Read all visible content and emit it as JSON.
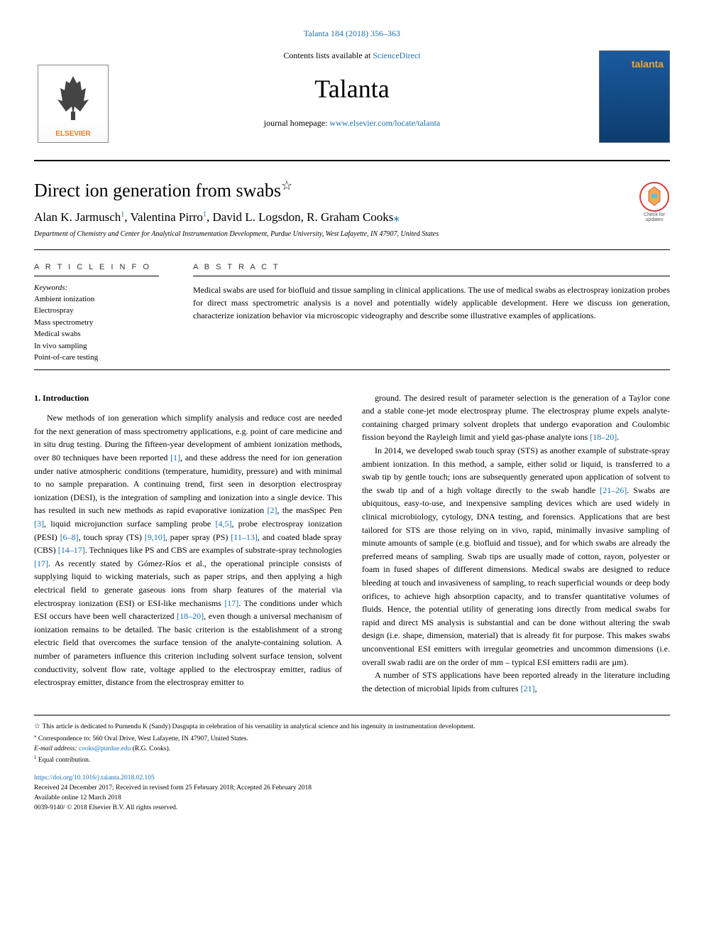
{
  "citation": "Talanta 184 (2018) 356–363",
  "masthead": {
    "contents_prefix": "Contents lists available at ",
    "contents_link": "ScienceDirect",
    "journal_name": "Talanta",
    "homepage_prefix": "journal homepage: ",
    "homepage_link": "www.elsevier.com/locate/talanta",
    "publisher_logo": "ELSEVIER",
    "cover_title": "talanta"
  },
  "article": {
    "title": "Direct ion generation from swabs",
    "star_note": "☆",
    "check_text": "Check for updates",
    "authors_html": "Alan K. Jarmusch<sup>1</sup>, Valentina Pirro<sup>1</sup>, David L. Logsdon, R. Graham Cooks",
    "corr_mark": "⁎",
    "affiliation": "Department of Chemistry and Center for Analytical Instrumentation Development, Purdue University, West Lafayette, IN 47907, United States"
  },
  "info": {
    "label": "A R T I C L E  I N F O",
    "keywords_label": "Keywords:",
    "keywords": [
      "Ambient ionization",
      "Electrospray",
      "Mass spectrometry",
      "Medical swabs",
      "In vivo sampling",
      "Point-of-care testing"
    ]
  },
  "abstract": {
    "label": "A B S T R A C T",
    "text": "Medical swabs are used for biofluid and tissue sampling in clinical applications. The use of medical swabs as electrospray ionization probes for direct mass spectrometric analysis is a novel and potentially widely applicable development. Here we discuss ion generation, characterize ionization behavior via microscopic videography and describe some illustrative examples of applications."
  },
  "body": {
    "section1_heading": "1. Introduction",
    "col_content": [
      "New methods of ion generation which simplify analysis and reduce cost are needed for the next generation of mass spectrometry applications, e.g. point of care medicine and in situ drug testing. During the fifteen-year development of ambient ionization methods, over 80 techniques have been reported [1], and these address the need for ion generation under native atmospheric conditions (temperature, humidity, pressure) and with minimal to no sample preparation. A continuing trend, first seen in desorption electrospray ionization (DESI), is the integration of sampling and ionization into a single device. This has resulted in such new methods as rapid evaporative ionization [2], the masSpec Pen [3], liquid microjunction surface sampling probe [4,5], probe electrospray ionization (PESI) [6–8], touch spray (TS) [9,10], paper spray (PS) [11–13], and coated blade spray (CBS) [14–17]. Techniques like PS and CBS are examples of substrate-spray technologies [17]. As recently stated by Gómez-Ríos et al., the operational principle consists of supplying liquid to wicking materials, such as paper strips, and then applying a high electrical field to generate gaseous ions from sharp features of the material via electrospray ionization (ESI) or ESI-like mechanisms [17]. The conditions under which ESI occurs have been well characterized [18–20], even though a universal mechanism of ionization remains to be detailed. The basic criterion is the establishment of a strong electric field that overcomes the surface tension of the analyte-containing solution. A number of parameters influence this criterion including solvent surface tension, solvent conductivity, solvent flow rate, voltage applied to the electrospray emitter, radius of electrospray emitter, distance from the electrospray emitter to",
      "ground. The desired result of parameter selection is the generation of a Taylor cone and a stable cone-jet mode electrospray plume. The electrospray plume expels analyte-containing charged primary solvent droplets that undergo evaporation and Coulombic fission beyond the Rayleigh limit and yield gas-phase analyte ions [18–20].",
      "In 2014, we developed swab touch spray (STS) as another example of substrate-spray ambient ionization. In this method, a sample, either solid or liquid, is transferred to a swab tip by gentle touch; ions are subsequently generated upon application of solvent to the swab tip and of a high voltage directly to the swab handle [21–26]. Swabs are ubiquitous, easy-to-use, and inexpensive sampling devices which are used widely in clinical microbiology, cytology, DNA testing, and forensics. Applications that are best tailored for STS are those relying on in vivo, rapid, minimally invasive sampling of minute amounts of sample (e.g. biofluid and tissue), and for which swabs are already the preferred means of sampling. Swab tips are usually made of cotton, rayon, polyester or foam in fused shapes of different dimensions. Medical swabs are designed to reduce bleeding at touch and invasiveness of sampling, to reach superficial wounds or deep body orifices, to achieve high absorption capacity, and to transfer quantitative volumes of fluids. Hence, the potential utility of generating ions directly from medical swabs for rapid and direct MS analysis is substantial and can be done without altering the swab design (i.e. shape, dimension, material) that is already fit for purpose. This makes swabs unconventional ESI emitters with irregular geometries and uncommon dimensions (i.e. overall swab radii are on the order of mm – typical ESI emitters radii are µm).",
      "A number of STS applications have been reported already in the literature including the detection of microbial lipids from cultures [21],"
    ]
  },
  "footnotes": {
    "dedication": "This article is dedicated to Purnendu K (Sandy) Dasgupta in celebration of his versatility in analytical science and his ingenuity in instrumentation development.",
    "correspondence": "Correspondence to: 560 Oval Drive, West Lafayette, IN 47907, United States.",
    "email_label": "E-mail address: ",
    "email": "cooks@purdue.edu",
    "email_suffix": " (R.G. Cooks).",
    "equal": "Equal contribution.",
    "doi": "https://doi.org/10.1016/j.talanta.2018.02.105",
    "dates": "Received 24 December 2017; Received in revised form 25 February 2018; Accepted 26 February 2018",
    "available": "Available online 12 March 2018",
    "copyright": "0039-9140/ © 2018 Elsevier B.V. All rights reserved."
  },
  "colors": {
    "link": "#1a6fb0",
    "orange": "#f47b20",
    "cover_bg_top": "#1a5a9e",
    "cover_bg_bottom": "#0d3d6e",
    "cover_text": "#f5a623"
  }
}
